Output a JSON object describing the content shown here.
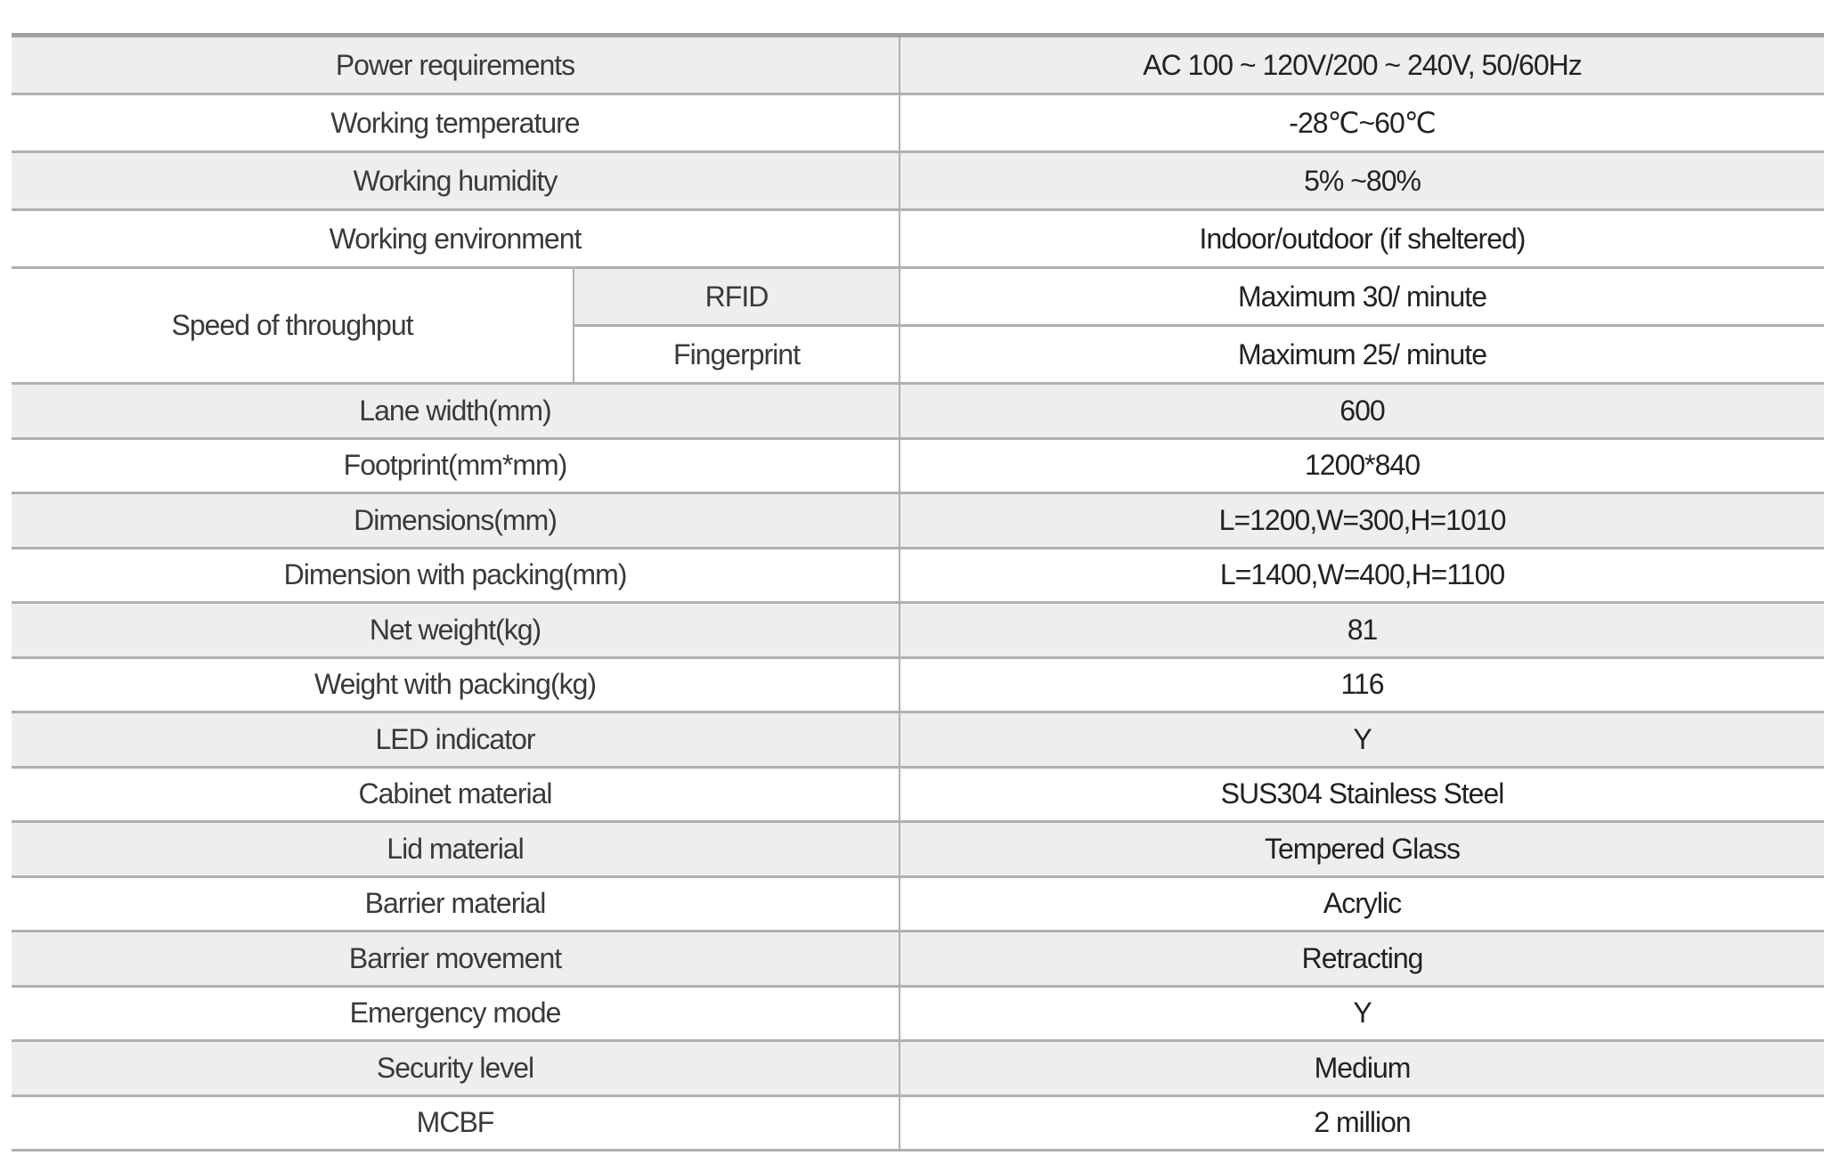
{
  "rows": [
    {
      "label": "Power requirements",
      "value": "AC 100 ~ 120V/200 ~ 240V, 50/60Hz"
    },
    {
      "label": "Working temperature",
      "value": "-28℃~60℃"
    },
    {
      "label": "Working humidity",
      "value": "5% ~80%"
    },
    {
      "label": "Working environment",
      "value": "Indoor/outdoor (if sheltered)"
    }
  ],
  "throughput": {
    "label": "Speed of throughput",
    "sub": [
      {
        "label": "RFID",
        "value": "Maximum 30/ minute"
      },
      {
        "label": "Fingerprint",
        "value": "Maximum 25/ minute"
      }
    ]
  },
  "rows2": [
    {
      "label": "Lane width(mm)",
      "value": "600"
    },
    {
      "label": "Footprint(mm*mm)",
      "value": "1200*840"
    },
    {
      "label": "Dimensions(mm)",
      "value": "L=1200,W=300,H=1010"
    },
    {
      "label": "Dimension with packing(mm)",
      "value": "L=1400,W=400,H=1100"
    },
    {
      "label": "Net weight(kg)",
      "value": "81"
    },
    {
      "label": "Weight with packing(kg)",
      "value": "116"
    },
    {
      "label": "LED indicator",
      "value": "Y"
    },
    {
      "label": "Cabinet material",
      "value": "SUS304 Stainless Steel"
    },
    {
      "label": "Lid material",
      "value": "Tempered Glass"
    },
    {
      "label": "Barrier material",
      "value": "Acrylic"
    },
    {
      "label": "Barrier movement",
      "value": "Retracting"
    },
    {
      "label": "Emergency mode",
      "value": "Y"
    },
    {
      "label": "Security level",
      "value": "Medium"
    },
    {
      "label": "MCBF",
      "value": "2 million"
    }
  ]
}
